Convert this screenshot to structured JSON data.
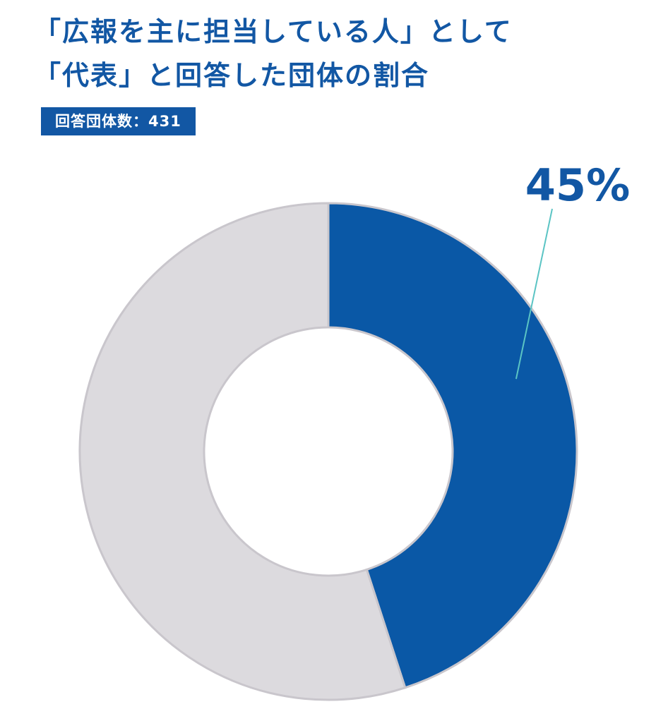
{
  "title": {
    "line1": "「広報を主に担当している人」として",
    "line2": "「代表」と回答した団体の割合"
  },
  "badge": {
    "text": "回答団体数：431"
  },
  "chart_data": {
    "type": "pie",
    "donut": true,
    "slices": [
      {
        "value": 45,
        "label": "45%",
        "color": "#0a58a6"
      },
      {
        "value": 55,
        "label": "",
        "color": "#dcdade"
      }
    ]
  }
}
